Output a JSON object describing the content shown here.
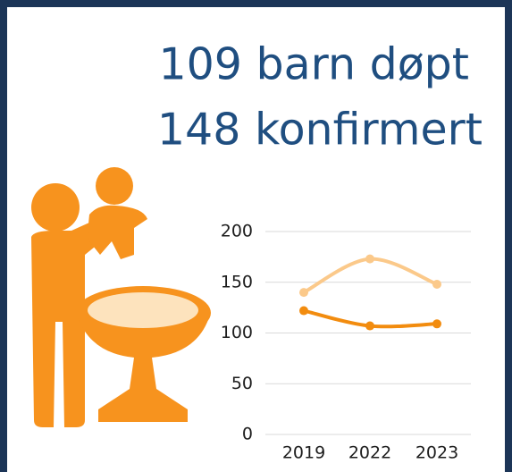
{
  "headline": {
    "line1": "109 barn døpt",
    "line2": "148 konfirmert"
  },
  "chart_data": {
    "type": "line",
    "categories": [
      "2019",
      "2022",
      "2023"
    ],
    "series": [
      {
        "color": "#fbc98a",
        "values": [
          140,
          173,
          148
        ]
      },
      {
        "color": "#f28c0f",
        "values": [
          122,
          107,
          109
        ]
      }
    ],
    "ylim": [
      0,
      200
    ],
    "yticks": [
      0,
      50,
      100,
      150,
      200
    ],
    "grid": true
  }
}
